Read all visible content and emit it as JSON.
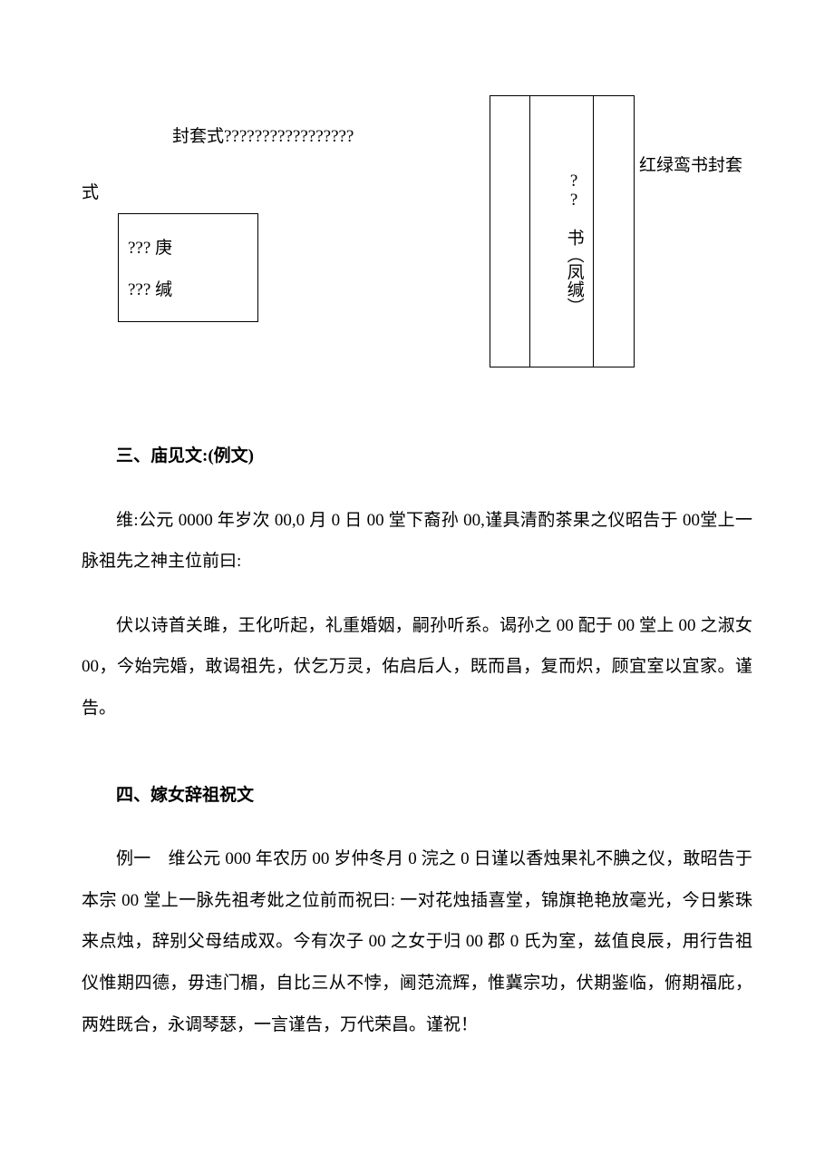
{
  "topArea": {
    "line1": "封套式?????????????????",
    "verticalBox": {
      "leftCol": "",
      "midCol": "?? 书（凤缄）",
      "rightCol": ""
    },
    "suffix": "红绿鸾书封套",
    "shi": "式",
    "smallBox": {
      "row1": "???  庚",
      "row2": "???  缄"
    }
  },
  "section3": {
    "heading": "三、庙见文:(例文)",
    "p1": "维:公元 0000 年岁次 00,0 月 0 日 00 堂下裔孙 00,谨具清酌茶果之仪昭告于 00堂上一脉祖先之神主位前曰:",
    "p2": "伏以诗首关雎，王化听起，礼重婚姻，嗣孙听系。谒孙之 00 配于 00 堂上 00 之淑女 00，今始完婚，敢谒祖先，伏乞万灵，佑启后人，既而昌，复而炽，顾宜室以宜家。谨告。"
  },
  "section4": {
    "heading": "四、嫁女辞祖祝文",
    "p1": "例一　维公元 000 年农历 00 岁仲冬月 0 浣之 0 日谨以香烛果礼不腆之仪，敢昭告于本宗 00 堂上一脉先祖考妣之位前而祝曰: 一对花烛插喜堂，锦旗艳艳放毫光，今日紫珠来点烛，辞别父母结成双。今有次子 00 之女于归 00 郡 0 氏为室，兹值良辰，用行告祖仪惟期四德，毋违门楣，自比三从不悖，阃范流辉，惟冀宗功，伏期鉴临，俯期福庇，两姓既合，永调琴瑟，一言谨告，万代荣昌。谨祝！"
  }
}
